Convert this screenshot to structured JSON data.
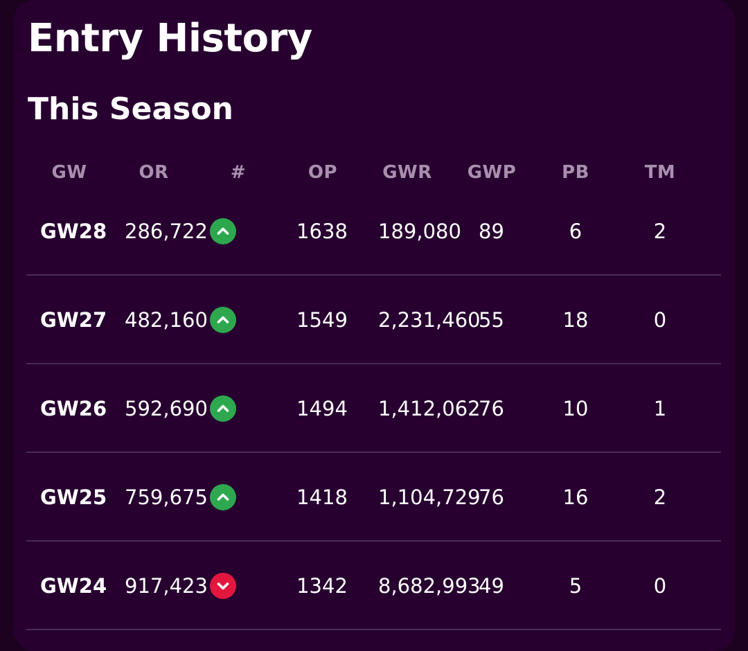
{
  "header": {
    "title": "Entry History",
    "subtitle": "This Season"
  },
  "colors": {
    "background": "#270030",
    "header_text": "#a98fae",
    "up": "#2ea84f",
    "down": "#e2173d"
  },
  "table": {
    "columns": [
      "GW",
      "OR",
      "#",
      "OP",
      "GWR",
      "GWP",
      "PB",
      "TM"
    ],
    "rows": [
      {
        "gw": "GW28",
        "or": "286,722",
        "movement": "up",
        "op": "1638",
        "gwr": "189,080",
        "gwp": "89",
        "pb": "6",
        "tm": "2"
      },
      {
        "gw": "GW27",
        "or": "482,160",
        "movement": "up",
        "op": "1549",
        "gwr": "2,231,460",
        "gwp": "55",
        "pb": "18",
        "tm": "0"
      },
      {
        "gw": "GW26",
        "or": "592,690",
        "movement": "up",
        "op": "1494",
        "gwr": "1,412,062",
        "gwp": "76",
        "pb": "10",
        "tm": "1"
      },
      {
        "gw": "GW25",
        "or": "759,675",
        "movement": "up",
        "op": "1418",
        "gwr": "1,104,729",
        "gwp": "76",
        "pb": "16",
        "tm": "2"
      },
      {
        "gw": "GW24",
        "or": "917,423",
        "movement": "down",
        "op": "1342",
        "gwr": "8,682,993",
        "gwp": "49",
        "pb": "5",
        "tm": "0"
      }
    ]
  }
}
